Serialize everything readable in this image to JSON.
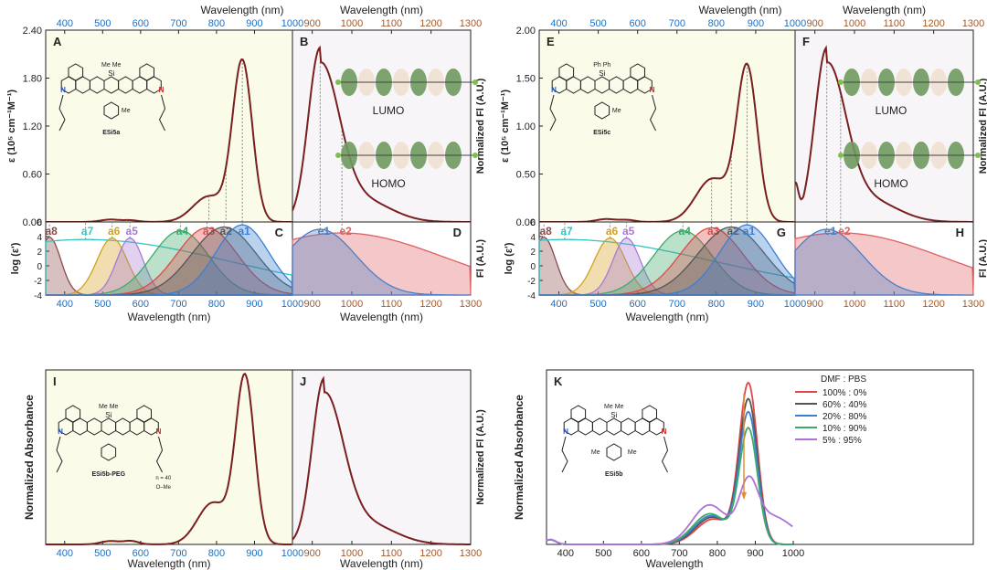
{
  "colors": {
    "absorbance": "#7a1f1f",
    "absorb_bg": "#fbfbea",
    "fluor_bg": "#f7f5f8",
    "axis_blue": "#1f6fbf",
    "axis_brown": "#a05a2c",
    "a1": "#3b7fd0",
    "a2": "#555555",
    "a3": "#e04848",
    "a4": "#3daa6a",
    "a5": "#a77ad8",
    "a6": "#d4a020",
    "a7": "#35c4c4",
    "a8": "#8a4a4a",
    "e1": "#4a7fc8",
    "e2": "#e06060"
  },
  "axes": {
    "wavelength_nm": "Wavelength (nm)",
    "wavelength": "Wavelength",
    "epsilon": "ε (10⁵ cm⁻¹M⁻¹)",
    "log_eps": "log (ε')",
    "norm_fl_au": "Normalized Fl (A.U.)",
    "fl_au": "Fl (A.U.)",
    "norm_abs": "Normalized Absorbance",
    "vis_ticks": [
      "400",
      "500",
      "600",
      "700",
      "800",
      "900",
      "1000"
    ],
    "nir_ticks": [
      "900",
      "1000",
      "1100",
      "1200",
      "1300"
    ],
    "log_ticks": [
      "6",
      "4",
      "2",
      "0",
      "-2",
      "-4"
    ]
  },
  "orbitals": {
    "lumo": "LUMO",
    "homo": "HOMO"
  },
  "molecules": {
    "ESi5a": {
      "name": "ESi5a",
      "si_sub": "Me  Me",
      "aryl": "Me"
    },
    "ESi5c": {
      "name": "ESi5c",
      "si_sub": "Ph  Ph",
      "aryl": "Me"
    },
    "ESi5b_PEG": {
      "name": "ESi5b-PEG",
      "si_sub": "Me  Me",
      "n": "n = 40",
      "ome": "O–Me"
    },
    "ESi5b": {
      "name": "ESi5b",
      "si_sub": "Me  Me",
      "aryl_l": "Me",
      "aryl_r": "Me"
    }
  },
  "chart_data": [
    {
      "panel": "A",
      "type": "line",
      "xlabel_top": "Wavelength (nm)",
      "ylabel": "ε (10⁵ cm⁻¹M⁻¹)",
      "xlim": [
        350,
        1000
      ],
      "ylim": [
        0,
        2.4
      ],
      "y_ticks": [
        "0.00",
        "0.60",
        "1.20",
        "1.80",
        "2.40"
      ],
      "peaks": [
        {
          "x": 868,
          "y": 2.0
        },
        {
          "x": 780,
          "y": 0.32
        }
      ],
      "markers": [
        868,
        825,
        780
      ]
    },
    {
      "panel": "B",
      "type": "line",
      "xlabel_top": "Wavelength (nm)",
      "ylabel": "Normalized Fl (A.U.)",
      "xlim": [
        850,
        1300
      ],
      "peak": 920,
      "markers": [
        920,
        975
      ]
    },
    {
      "panel": "C",
      "type": "area",
      "xlabel": "Wavelength (nm)",
      "ylabel": "log (ε')",
      "xlim": [
        350,
        1000
      ],
      "ylim": [
        -4,
        6
      ],
      "bands": [
        {
          "name": "a1",
          "center": 868
        },
        {
          "name": "a2",
          "center": 820
        },
        {
          "name": "a3",
          "center": 775
        },
        {
          "name": "a4",
          "center": 705
        },
        {
          "name": "a5",
          "center": 572
        },
        {
          "name": "a6",
          "center": 525
        },
        {
          "name": "a7",
          "center": 455
        },
        {
          "name": "a8",
          "center": 360
        }
      ]
    },
    {
      "panel": "D",
      "type": "area",
      "xlabel": "Wavelength (nm)",
      "ylabel": "Fl (A.U.)",
      "xlim": [
        850,
        1300
      ],
      "bands": [
        {
          "name": "e1",
          "center": 920
        },
        {
          "name": "e2",
          "center": 975
        }
      ]
    },
    {
      "panel": "E",
      "type": "line",
      "xlabel_top": "Wavelength (nm)",
      "ylabel": "ε (10⁵ cm⁻¹M⁻¹)",
      "xlim": [
        350,
        1000
      ],
      "ylim": [
        0,
        2.0
      ],
      "y_ticks": [
        "0.00",
        "0.50",
        "1.00",
        "1.50",
        "2.00"
      ],
      "peaks": [
        {
          "x": 878,
          "y": 1.6
        },
        {
          "x": 790,
          "y": 0.45
        }
      ],
      "markers": [
        878,
        838,
        788
      ]
    },
    {
      "panel": "F",
      "type": "line",
      "xlabel_top": "Wavelength (nm)",
      "ylabel": "Normalized Fl (A.U.)",
      "xlim": [
        850,
        1300
      ],
      "peak": 930,
      "markers": [
        930,
        965
      ]
    },
    {
      "panel": "G",
      "type": "area",
      "xlabel": "Wavelength (nm)",
      "ylabel": "log (ε')",
      "xlim": [
        350,
        1000
      ],
      "ylim": [
        -4,
        6
      ],
      "bands": [
        {
          "name": "a1",
          "center": 878
        },
        {
          "name": "a2",
          "center": 838
        },
        {
          "name": "a3",
          "center": 788
        },
        {
          "name": "a4",
          "center": 715
        },
        {
          "name": "a5",
          "center": 572
        },
        {
          "name": "a6",
          "center": 530
        },
        {
          "name": "a7",
          "center": 415
        },
        {
          "name": "a8",
          "center": 362
        }
      ]
    },
    {
      "panel": "H",
      "type": "area",
      "xlabel": "",
      "ylabel": "Fl (A.U.)",
      "xlim": [
        850,
        1300
      ],
      "bands": [
        {
          "name": "e1",
          "center": 930
        },
        {
          "name": "e2",
          "center": 965
        }
      ]
    },
    {
      "panel": "I",
      "type": "line",
      "xlabel": "Wavelength (nm)",
      "ylabel": "Normalized Absorbance",
      "xlim": [
        350,
        1000
      ],
      "peak": 875
    },
    {
      "panel": "J",
      "type": "line",
      "xlabel": "Wavelength (nm)",
      "ylabel": "Normalized Fl (A.U.)",
      "xlim": [
        850,
        1300
      ],
      "peak": 930
    },
    {
      "panel": "K",
      "type": "line",
      "xlabel": "Wavelength",
      "ylabel": "Normalized Absorbance",
      "xlim": [
        350,
        1000
      ],
      "legend_title": "DMF : PBS",
      "series": [
        {
          "name": "100% : 0%",
          "color": "#e04848",
          "peak": 1.0
        },
        {
          "name": "60% : 40%",
          "color": "#555555",
          "peak": 0.9
        },
        {
          "name": "20% : 80%",
          "color": "#3b7fd0",
          "peak": 0.82
        },
        {
          "name": "10% : 90%",
          "color": "#3daa6a",
          "peak": 0.72
        },
        {
          "name": "5% : 95%",
          "color": "#b070d8",
          "peak": 0.3
        }
      ]
    }
  ]
}
